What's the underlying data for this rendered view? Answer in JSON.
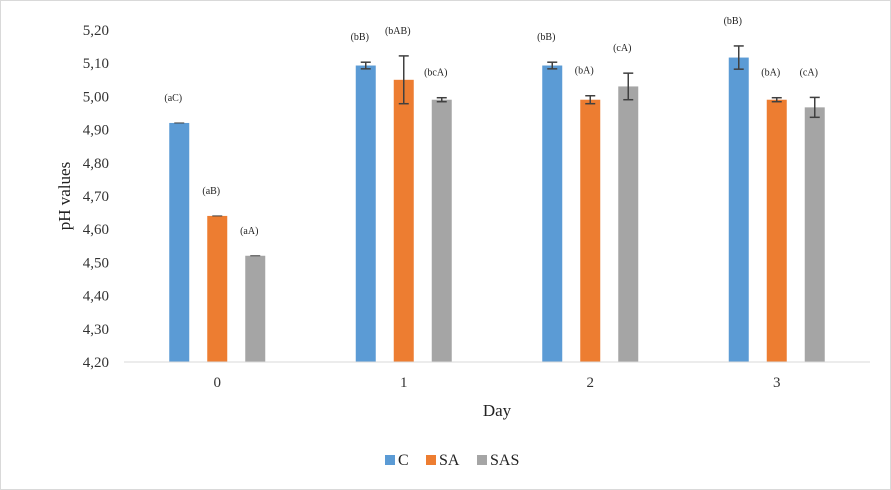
{
  "chart_data": {
    "type": "bar",
    "xlabel": "Day",
    "ylabel": "pH values",
    "categories": [
      "0",
      "1",
      "2",
      "3"
    ],
    "ylim": [
      4.2,
      5.2
    ],
    "yticks": [
      "4,20",
      "4,30",
      "4,40",
      "4,50",
      "4,60",
      "4,70",
      "4,80",
      "4,90",
      "5,00",
      "5,10",
      "5,20"
    ],
    "grid": false,
    "legend_position": "bottom",
    "series": [
      {
        "name": "C",
        "color": "#5b9bd5",
        "values": [
          4.92,
          5.093,
          5.093,
          5.117
        ],
        "errors": [
          0.0,
          0.01,
          0.01,
          0.035
        ],
        "labels": [
          "(aC)",
          "(bB)",
          "(bB)",
          "(bB)"
        ]
      },
      {
        "name": "SA",
        "color": "#ed7d31",
        "values": [
          4.64,
          5.05,
          4.99,
          4.99
        ],
        "errors": [
          0.0,
          0.072,
          0.012,
          0.006
        ],
        "labels": [
          "(aB)",
          "(bAB)",
          "(bA)",
          "(bA)"
        ]
      },
      {
        "name": "SAS",
        "color": "#a5a5a5",
        "values": [
          4.52,
          4.99,
          5.03,
          4.967
        ],
        "errors": [
          0.0,
          0.006,
          0.04,
          0.03
        ],
        "labels": [
          "(aA)",
          "(bcA)",
          "(cA)",
          "(cA)"
        ]
      }
    ]
  }
}
